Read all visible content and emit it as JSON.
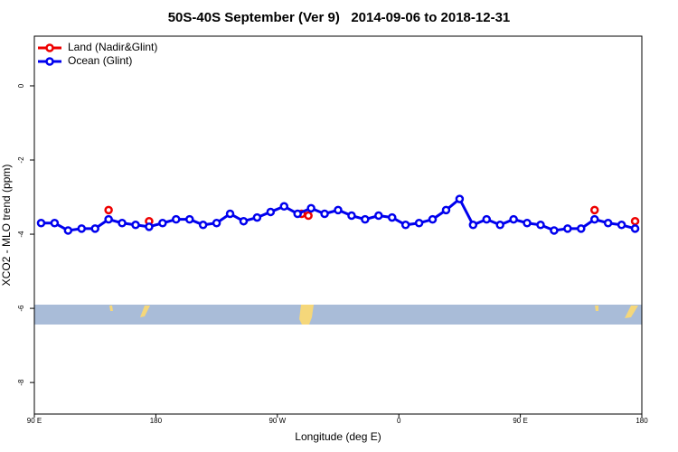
{
  "chart_data": {
    "type": "line",
    "title": "50S-40S September (Ver 9)   2014-09-06 to 2018-12-31",
    "x_label": "Longitude (deg E)",
    "y_label": "XCO2 - MLO trend (ppm)",
    "xlim": [
      90,
      540
    ],
    "ylim": [
      -8.85,
      1.34
    ],
    "xticks": [
      {
        "value": 90,
        "label": "90 E"
      },
      180,
      {
        "value": 270,
        "label": "90 W"
      },
      {
        "value": 360,
        "label": "0"
      },
      {
        "value": 450,
        "label": "90 E"
      },
      {
        "value": 540,
        "label": "180"
      }
    ],
    "yticks": [
      0,
      -2,
      -4,
      -6,
      -8
    ],
    "legend": "top-left",
    "series": [
      {
        "name": "Land (Nadir&Glint)",
        "color": "#ee0000",
        "line": false,
        "x": [
          145,
          175,
          288,
          293,
          505,
          535
        ],
        "values": [
          -3.35,
          -3.65,
          -3.45,
          -3.5,
          -3.35,
          -3.65
        ]
      },
      {
        "name": "Ocean (Glint)",
        "color": "#0000ee",
        "line": true,
        "x": [
          95,
          105,
          115,
          125,
          135,
          145,
          155,
          165,
          175,
          185,
          195,
          205,
          215,
          225,
          235,
          245,
          255,
          265,
          275,
          285,
          295,
          305,
          315,
          325,
          335,
          345,
          355,
          365,
          375,
          385,
          395,
          405,
          415,
          425,
          435,
          445,
          455,
          465,
          475,
          485,
          495,
          505,
          515,
          525,
          535
        ],
        "values": [
          -3.7,
          -3.7,
          -3.9,
          -3.85,
          -3.85,
          -3.6,
          -3.7,
          -3.75,
          -3.8,
          -3.7,
          -3.6,
          -3.6,
          -3.75,
          -3.7,
          -3.45,
          -3.65,
          -3.55,
          -3.4,
          -3.25,
          -3.45,
          -3.3,
          -3.45,
          -3.35,
          -3.5,
          -3.6,
          -3.5,
          -3.55,
          -3.75,
          -3.7,
          -3.6,
          -3.35,
          -3.05,
          -3.75,
          -3.6,
          -3.75,
          -3.6,
          -3.7,
          -3.75,
          -3.9,
          -3.85,
          -3.85,
          -3.6,
          -3.7,
          -3.75,
          -3.85
        ]
      }
    ]
  }
}
